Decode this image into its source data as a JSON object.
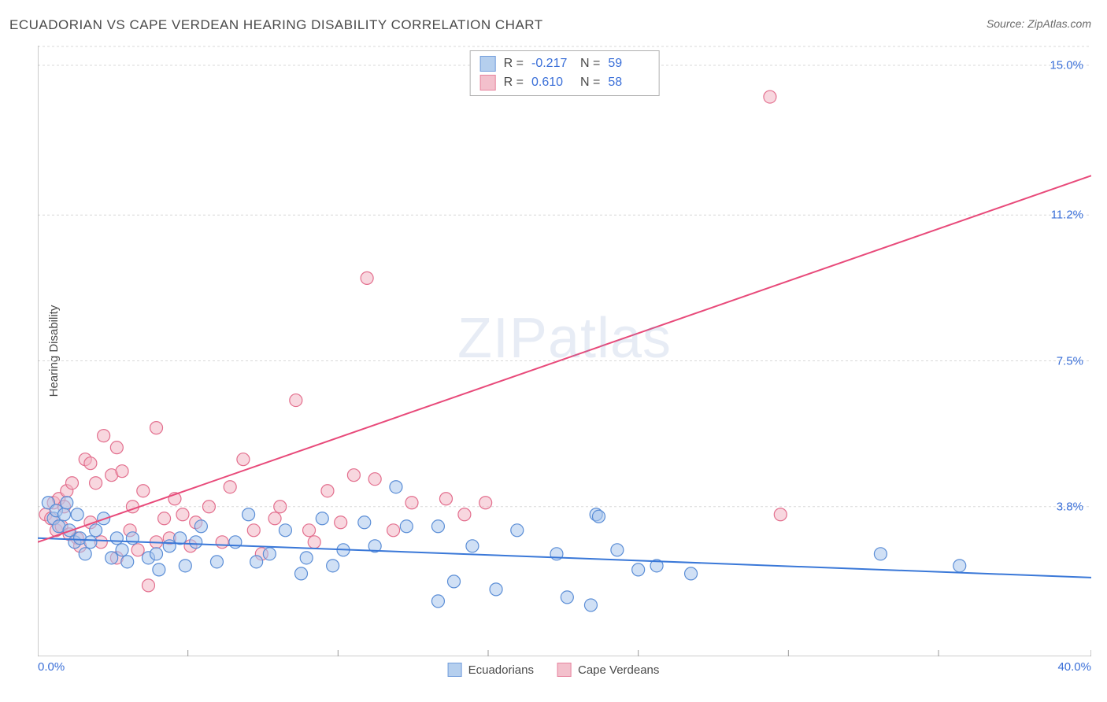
{
  "title": "ECUADORIAN VS CAPE VERDEAN HEARING DISABILITY CORRELATION CHART",
  "source": "Source: ZipAtlas.com",
  "y_axis_label": "Hearing Disability",
  "x_axis": {
    "min_label": "0.0%",
    "max_label": "40.0%",
    "min": 0,
    "max": 40
  },
  "y_axis": {
    "min": 0,
    "max": 15.5,
    "ticks": [
      {
        "value": 3.8,
        "label": "3.8%"
      },
      {
        "value": 7.5,
        "label": "7.5%"
      },
      {
        "value": 11.2,
        "label": "11.2%"
      },
      {
        "value": 15.0,
        "label": "15.0%"
      }
    ]
  },
  "gridline_color": "#d8d8d8",
  "axis_line_color": "#9a9a9a",
  "tick_color": "#9a9a9a",
  "background_color": "#ffffff",
  "watermark": {
    "left": "ZIP",
    "right": "atlas"
  },
  "series": [
    {
      "name": "Ecuadorians",
      "fill": "#a9c7ec",
      "stroke": "#5a8dd6",
      "fill_opacity": 0.55,
      "marker_radius": 8,
      "line_color": "#3a78d8",
      "line_width": 2,
      "R": "-0.217",
      "N": "59",
      "trend": {
        "x1": 0,
        "y1": 3.0,
        "x2": 40,
        "y2": 2.0
      },
      "points": [
        [
          0.4,
          3.9
        ],
        [
          0.6,
          3.5
        ],
        [
          0.7,
          3.7
        ],
        [
          0.8,
          3.3
        ],
        [
          1.0,
          3.6
        ],
        [
          1.1,
          3.9
        ],
        [
          1.2,
          3.2
        ],
        [
          1.4,
          2.9
        ],
        [
          1.5,
          3.6
        ],
        [
          1.6,
          3.0
        ],
        [
          1.8,
          2.6
        ],
        [
          2.0,
          2.9
        ],
        [
          2.2,
          3.2
        ],
        [
          2.5,
          3.5
        ],
        [
          2.8,
          2.5
        ],
        [
          3.0,
          3.0
        ],
        [
          3.2,
          2.7
        ],
        [
          3.4,
          2.4
        ],
        [
          3.6,
          3.0
        ],
        [
          4.2,
          2.5
        ],
        [
          4.5,
          2.6
        ],
        [
          4.6,
          2.2
        ],
        [
          5.0,
          2.8
        ],
        [
          5.4,
          3.0
        ],
        [
          5.6,
          2.3
        ],
        [
          6.0,
          2.9
        ],
        [
          6.2,
          3.3
        ],
        [
          6.8,
          2.4
        ],
        [
          7.5,
          2.9
        ],
        [
          8.0,
          3.6
        ],
        [
          8.3,
          2.4
        ],
        [
          8.8,
          2.6
        ],
        [
          9.4,
          3.2
        ],
        [
          10.0,
          2.1
        ],
        [
          10.2,
          2.5
        ],
        [
          10.8,
          3.5
        ],
        [
          11.2,
          2.3
        ],
        [
          11.6,
          2.7
        ],
        [
          12.4,
          3.4
        ],
        [
          12.8,
          2.8
        ],
        [
          13.6,
          4.3
        ],
        [
          14.0,
          3.3
        ],
        [
          15.2,
          1.4
        ],
        [
          15.2,
          3.3
        ],
        [
          15.8,
          1.9
        ],
        [
          16.5,
          2.8
        ],
        [
          17.4,
          1.7
        ],
        [
          18.2,
          3.2
        ],
        [
          19.7,
          2.6
        ],
        [
          20.1,
          1.5
        ],
        [
          21.0,
          1.3
        ],
        [
          21.2,
          3.6
        ],
        [
          21.3,
          3.55
        ],
        [
          22.0,
          2.7
        ],
        [
          22.8,
          2.2
        ],
        [
          23.5,
          2.3
        ],
        [
          24.8,
          2.1
        ],
        [
          32.0,
          2.6
        ],
        [
          35.0,
          2.3
        ]
      ]
    },
    {
      "name": "Cape Verdeans",
      "fill": "#f2b6c4",
      "stroke": "#e36f8e",
      "fill_opacity": 0.55,
      "marker_radius": 8,
      "line_color": "#e84a7a",
      "line_width": 2,
      "R": "0.610",
      "N": "58",
      "trend": {
        "x1": 0,
        "y1": 2.9,
        "x2": 40,
        "y2": 12.2
      },
      "points": [
        [
          0.3,
          3.6
        ],
        [
          0.5,
          3.5
        ],
        [
          0.6,
          3.9
        ],
        [
          0.7,
          3.2
        ],
        [
          0.8,
          4.0
        ],
        [
          0.9,
          3.3
        ],
        [
          1.0,
          3.8
        ],
        [
          1.1,
          4.2
        ],
        [
          1.2,
          3.1
        ],
        [
          1.3,
          4.4
        ],
        [
          1.5,
          3.0
        ],
        [
          1.6,
          2.8
        ],
        [
          1.8,
          5.0
        ],
        [
          2.0,
          4.9
        ],
        [
          2.0,
          3.4
        ],
        [
          2.2,
          4.4
        ],
        [
          2.4,
          2.9
        ],
        [
          2.5,
          5.6
        ],
        [
          2.8,
          4.6
        ],
        [
          3.0,
          5.3
        ],
        [
          3.0,
          2.5
        ],
        [
          3.2,
          4.7
        ],
        [
          3.5,
          3.2
        ],
        [
          3.6,
          3.8
        ],
        [
          3.8,
          2.7
        ],
        [
          4.0,
          4.2
        ],
        [
          4.2,
          1.8
        ],
        [
          4.5,
          2.9
        ],
        [
          4.5,
          5.8
        ],
        [
          4.8,
          3.5
        ],
        [
          5.0,
          3.0
        ],
        [
          5.2,
          4.0
        ],
        [
          5.5,
          3.6
        ],
        [
          5.8,
          2.8
        ],
        [
          6.0,
          3.4
        ],
        [
          6.5,
          3.8
        ],
        [
          7.0,
          2.9
        ],
        [
          7.3,
          4.3
        ],
        [
          7.8,
          5.0
        ],
        [
          8.2,
          3.2
        ],
        [
          8.5,
          2.6
        ],
        [
          9.0,
          3.5
        ],
        [
          9.2,
          3.8
        ],
        [
          9.8,
          6.5
        ],
        [
          10.3,
          3.2
        ],
        [
          10.5,
          2.9
        ],
        [
          11.0,
          4.2
        ],
        [
          11.5,
          3.4
        ],
        [
          12.0,
          4.6
        ],
        [
          12.5,
          9.6
        ],
        [
          12.8,
          4.5
        ],
        [
          13.5,
          3.2
        ],
        [
          14.2,
          3.9
        ],
        [
          15.5,
          4.0
        ],
        [
          16.2,
          3.6
        ],
        [
          17.0,
          3.9
        ],
        [
          27.8,
          14.2
        ],
        [
          28.2,
          3.6
        ]
      ]
    }
  ],
  "x_ticks": [
    0,
    5.7,
    11.4,
    17.1,
    22.8,
    28.5,
    34.2,
    40
  ],
  "stats_legend_labels": {
    "R": "R =",
    "N": "N ="
  },
  "bottom_legend_labels": [
    "Ecuadorians",
    "Cape Verdeans"
  ]
}
